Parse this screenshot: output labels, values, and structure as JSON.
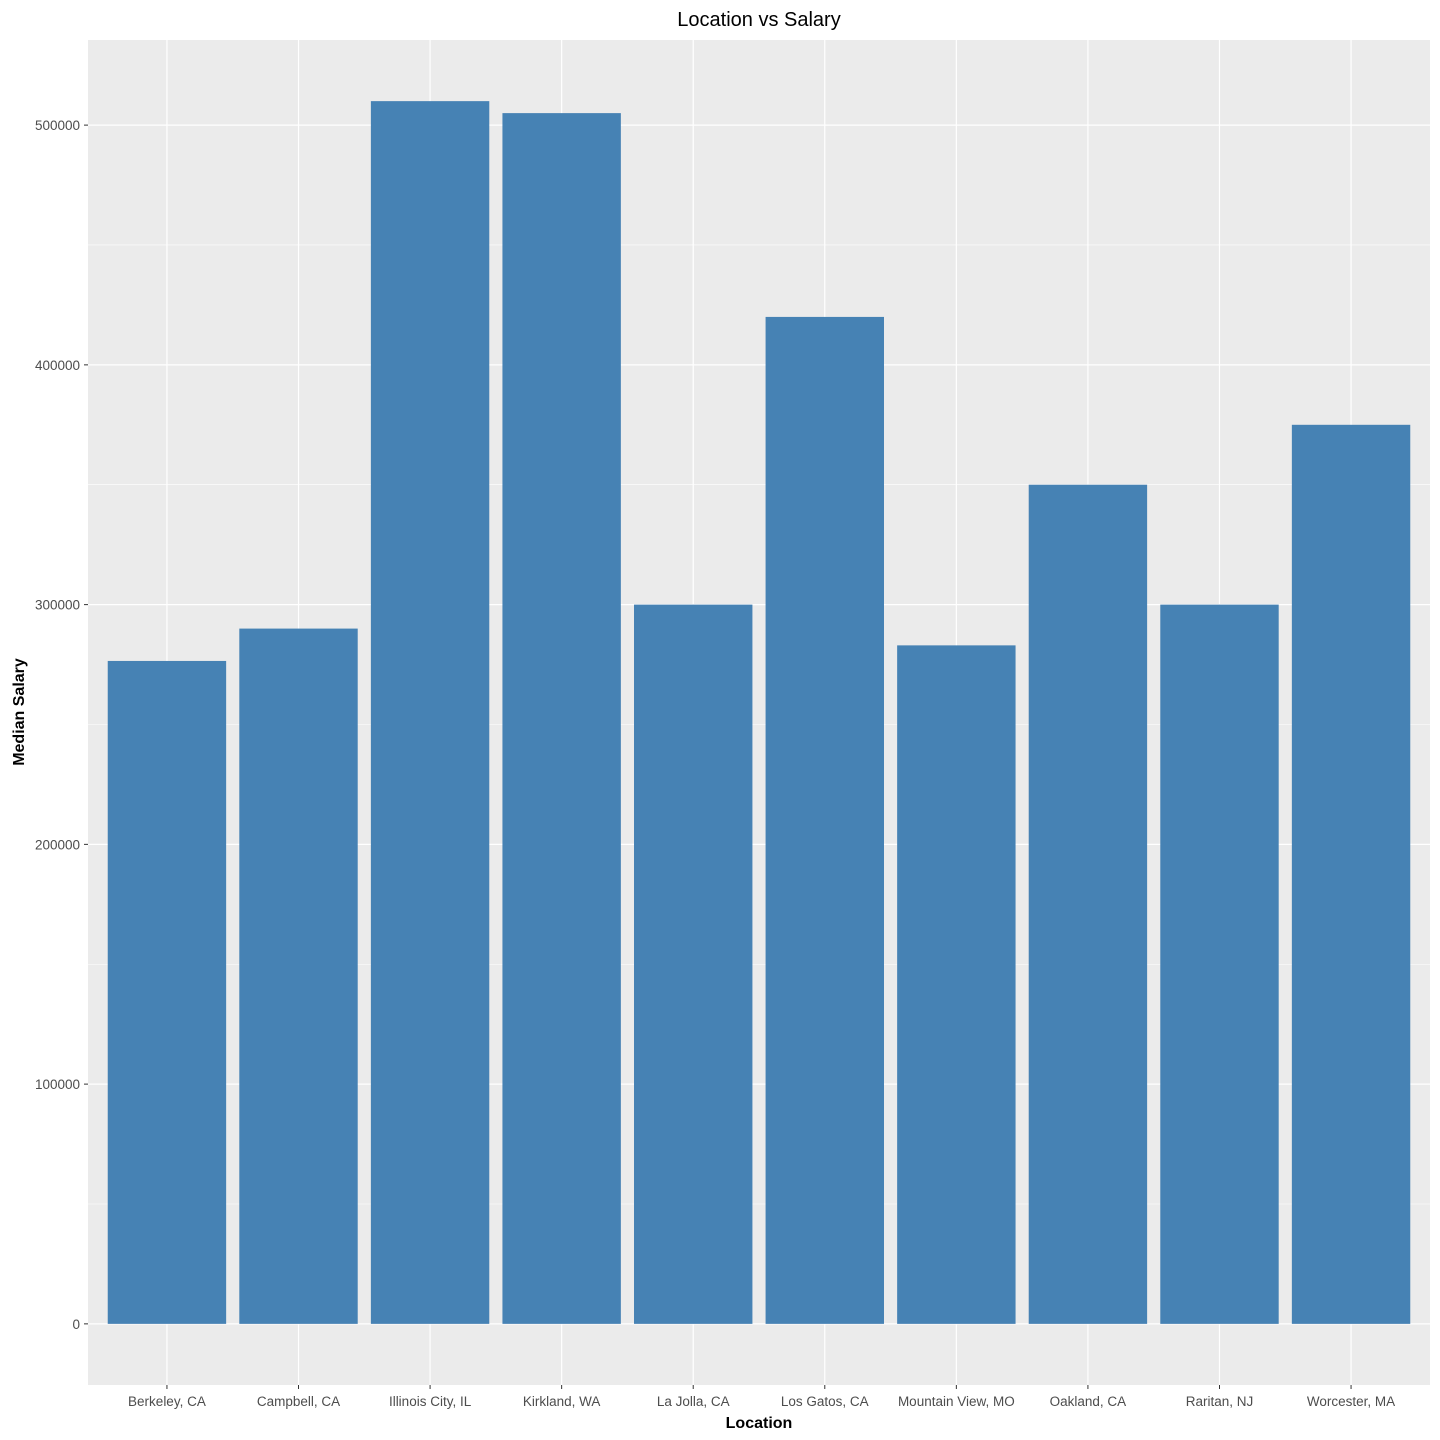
{
  "chart_data": {
    "type": "bar",
    "title": "Location vs Salary",
    "xlabel": "Location",
    "ylabel": "Median Salary",
    "categories": [
      "Berkeley, CA",
      "Campbell, CA",
      "Illinois City, IL",
      "Kirkland, WA",
      "La Jolla, CA",
      "Los Gatos, CA",
      "Mountain View, MO",
      "Oakland, CA",
      "Raritan, NJ",
      "Worcester, MA"
    ],
    "values": [
      276500,
      290000,
      510000,
      505000,
      300000,
      420000,
      283000,
      350000,
      300000,
      375000
    ],
    "ylim": [
      -25500,
      535500
    ],
    "yticks": [
      0,
      100000,
      200000,
      300000,
      400000,
      500000
    ],
    "ytick_labels": [
      "0",
      "100000",
      "200000",
      "300000",
      "400000",
      "500000"
    ],
    "grid": true,
    "bar_color": "#4682b4",
    "panel_background": "#ebebeb",
    "gridline_color": "#ffffff"
  }
}
